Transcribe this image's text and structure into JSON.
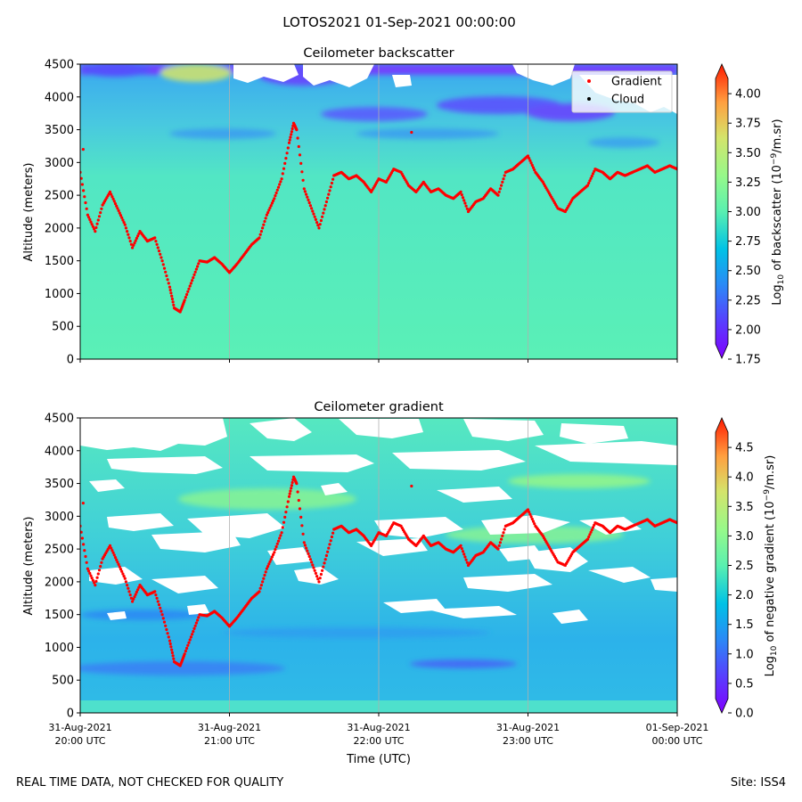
{
  "figure": {
    "suptitle": "LOTOS2021 01-Sep-2021 00:00:00",
    "footer_left": "REAL TIME DATA, NOT CHECKED FOR QUALITY",
    "footer_right": "Site: ISS4"
  },
  "colors": {
    "gradient_marker": "#ff0000",
    "cloud_marker": "#000000",
    "nodata": "#ffffff",
    "grid": "#b0b0b0"
  },
  "chart_data": [
    {
      "type": "heatmap",
      "title": "Ceilometer backscatter",
      "xlabel": "",
      "ylabel": "Altitude (meters)",
      "ylim": [
        0,
        4500
      ],
      "yticks": [
        "0",
        "500",
        "1000",
        "1500",
        "2000",
        "2500",
        "3000",
        "3500",
        "4000",
        "4500"
      ],
      "xlim_hours": [
        20,
        24
      ],
      "xtick_hours": [
        20,
        21,
        22,
        23,
        24
      ],
      "xtick_labels": [],
      "grid": "vertical",
      "colorbar": {
        "label": "Log10 of backscatter (10^-9/m.sr)",
        "label_parts": {
          "pre": "Log",
          "sub": "10",
          "mid": " of backscatter (10",
          "sup": "−9",
          "post": "/m.sr)"
        },
        "range": [
          1.75,
          4.25
        ],
        "ticks": [
          "1.75",
          "2.00",
          "2.25",
          "2.50",
          "2.75",
          "3.00",
          "3.25",
          "3.50",
          "3.75",
          "4.00"
        ],
        "extend": "both"
      },
      "legend": {
        "position": "top-right",
        "entries": [
          {
            "label": "Gradient",
            "color": "#ff0000"
          },
          {
            "label": "Cloud",
            "color": "#000000"
          }
        ]
      }
    },
    {
      "type": "heatmap",
      "title": "Ceilometer gradient",
      "xlabel": "Time (UTC)",
      "ylabel": "Altitude (meters)",
      "ylim": [
        0,
        4500
      ],
      "yticks": [
        "0",
        "500",
        "1000",
        "1500",
        "2000",
        "2500",
        "3000",
        "3500",
        "4000",
        "4500"
      ],
      "xlim_hours": [
        20,
        24
      ],
      "xtick_hours": [
        20,
        21,
        22,
        23,
        24
      ],
      "xtick_labels": [
        {
          "date": "31-Aug-2021",
          "time": "20:00 UTC"
        },
        {
          "date": "31-Aug-2021",
          "time": "21:00 UTC"
        },
        {
          "date": "31-Aug-2021",
          "time": "22:00 UTC"
        },
        {
          "date": "31-Aug-2021",
          "time": "23:00 UTC"
        },
        {
          "date": "01-Sep-2021",
          "time": "00:00 UTC"
        }
      ],
      "grid": "vertical",
      "colorbar": {
        "label": "Log10 of negative gradient (10^-9/m.sr)",
        "label_parts": {
          "pre": "Log",
          "sub": "10",
          "mid": " of negative gradient (10",
          "sup": "−9",
          "post": "/m.sr)"
        },
        "range": [
          0.0,
          5.0
        ],
        "ticks": [
          "0.0",
          "0.5",
          "1.0",
          "1.5",
          "2.0",
          "2.5",
          "3.0",
          "3.5",
          "4.0",
          "4.5"
        ],
        "extend": "both"
      }
    }
  ],
  "series": {
    "gradient_height": {
      "name": "Gradient",
      "x_hours": [
        20.0,
        20.05,
        20.1,
        20.15,
        20.2,
        20.25,
        20.3,
        20.35,
        20.4,
        20.45,
        20.5,
        20.55,
        20.6,
        20.63,
        20.67,
        20.7,
        20.75,
        20.8,
        20.85,
        20.9,
        20.95,
        21.0,
        21.05,
        21.1,
        21.15,
        21.2,
        21.25,
        21.3,
        21.35,
        21.4,
        21.43,
        21.45,
        21.5,
        21.55,
        21.6,
        21.65,
        21.7,
        21.75,
        21.8,
        21.85,
        21.9,
        21.95,
        22.0,
        22.05,
        22.1,
        22.15,
        22.2,
        22.25,
        22.3,
        22.35,
        22.4,
        22.45,
        22.5,
        22.55,
        22.6,
        22.65,
        22.7,
        22.75,
        22.8,
        22.85,
        22.9,
        22.95,
        23.0,
        23.05,
        23.1,
        23.15,
        23.2,
        23.25,
        23.3,
        23.35,
        23.4,
        23.45,
        23.5,
        23.55,
        23.6,
        23.65,
        23.7,
        23.75,
        23.8,
        23.85,
        23.9,
        23.95,
        24.0
      ],
      "y_m": [
        2850,
        2200,
        1950,
        2350,
        2550,
        2300,
        2050,
        1700,
        1950,
        1800,
        1850,
        1500,
        1100,
        780,
        720,
        900,
        1200,
        1500,
        1480,
        1550,
        1450,
        1320,
        1450,
        1600,
        1750,
        1850,
        2200,
        2450,
        2750,
        3300,
        3600,
        3500,
        2600,
        2300,
        2000,
        2400,
        2800,
        2850,
        2750,
        2800,
        2700,
        2550,
        2750,
        2700,
        2900,
        2850,
        2650,
        2550,
        2700,
        2550,
        2600,
        2500,
        2450,
        2550,
        2250,
        2400,
        2450,
        2600,
        2500,
        2850,
        2900,
        3000,
        3100,
        2850,
        2700,
        2500,
        2300,
        2250,
        2450,
        2550,
        2650,
        2900,
        2850,
        2750,
        2850,
        2800,
        2850,
        2900,
        2950,
        2850,
        2900,
        2950,
        2900
      ]
    },
    "cloud_height": {
      "name": "Cloud",
      "x_hours": [],
      "y_m": []
    }
  }
}
